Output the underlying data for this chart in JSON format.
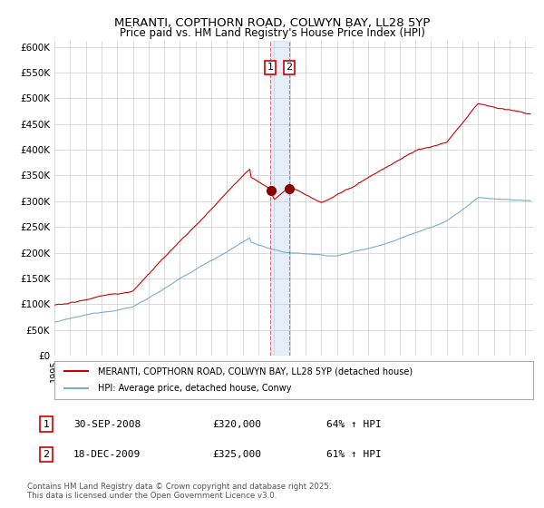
{
  "title": "MERANTI, COPTHORN ROAD, COLWYN BAY, LL28 5YP",
  "subtitle": "Price paid vs. HM Land Registry's House Price Index (HPI)",
  "ylabel_ticks": [
    "£0",
    "£50K",
    "£100K",
    "£150K",
    "£200K",
    "£250K",
    "£300K",
    "£350K",
    "£400K",
    "£450K",
    "£500K",
    "£550K",
    "£600K"
  ],
  "ytick_values": [
    0,
    50000,
    100000,
    150000,
    200000,
    250000,
    300000,
    350000,
    400000,
    450000,
    500000,
    550000,
    600000
  ],
  "ylim": [
    0,
    612000
  ],
  "xlim_start": 1995.0,
  "xlim_end": 2025.5,
  "red_line_color": "#cc0000",
  "blue_line_color": "#7aadcc",
  "marker1_date": 2008.75,
  "marker2_date": 2009.97,
  "shade_color": "#aaccee",
  "shade_alpha": 0.3,
  "vline_color": "#cc0000",
  "vline_alpha": 0.5,
  "legend_label_red": "MERANTI, COPTHORN ROAD, COLWYN BAY, LL28 5YP (detached house)",
  "legend_label_blue": "HPI: Average price, detached house, Conwy",
  "table_rows": [
    {
      "num": "1",
      "date": "30-SEP-2008",
      "price": "£320,000",
      "pct": "64% ↑ HPI"
    },
    {
      "num": "2",
      "date": "18-DEC-2009",
      "price": "£325,000",
      "pct": "61% ↑ HPI"
    }
  ],
  "footer": "Contains HM Land Registry data © Crown copyright and database right 2025.\nThis data is licensed under the Open Government Licence v3.0.",
  "background_color": "#ffffff",
  "grid_color": "#cccccc"
}
